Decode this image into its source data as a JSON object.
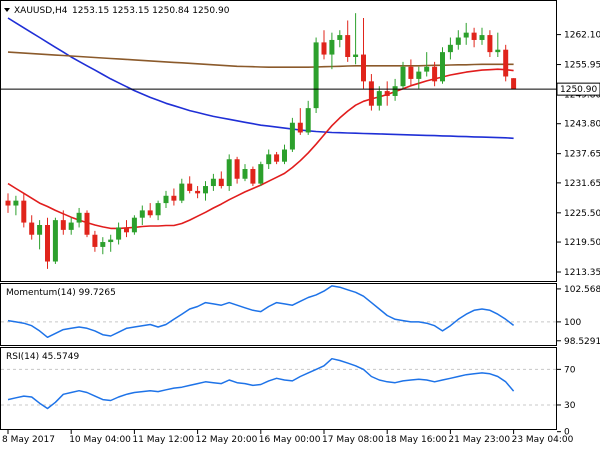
{
  "header": {
    "symbol_text": "XAUUSD,H4",
    "ohlc_text": "1253.15 1253.15 1250.84 1250.90"
  },
  "current_price_label": "1250.90",
  "colors": {
    "bull": "#2ca02c",
    "bear": "#e0241b",
    "ma_fast": "#e11d1d",
    "ma_mid": "#8b5a2b",
    "ma_slow": "#1f2fd6",
    "momentum": "#1e73e8",
    "rsi": "#1e73e8",
    "grid": "#c8c8c8",
    "border": "#000000"
  },
  "chart_data": [
    {
      "type": "candlestick",
      "name": "XAUUSD,H4",
      "ylim": [
        1211.5,
        1269.0
      ],
      "y_ticks": [
        "1262.10",
        "1255.95",
        "1249.80",
        "1243.80",
        "1237.65",
        "1231.65",
        "1225.50",
        "1219.50",
        "1213.35"
      ],
      "y_tick_values": [
        1262.1,
        1255.95,
        1249.8,
        1243.8,
        1237.65,
        1231.65,
        1225.5,
        1219.5,
        1213.35
      ],
      "current_price": 1250.9,
      "x_labels": [
        "8 May 2017",
        "10 May 04:00",
        "11 May 12:00",
        "12 May 20:00",
        "16 May 00:00",
        "17 May 08:00",
        "18 May 16:00",
        "21 May 23:00",
        "23 May 04:00"
      ],
      "x_label_index": [
        0,
        8,
        16,
        24,
        32,
        40,
        48,
        56,
        64
      ],
      "candles": [
        [
          1228.0,
          1229.5,
          1225.5,
          1227.0
        ],
        [
          1227.0,
          1229.0,
          1225.0,
          1228.0
        ],
        [
          1228.0,
          1229.5,
          1222.5,
          1223.5
        ],
        [
          1223.5,
          1225.0,
          1220.0,
          1221.0
        ],
        [
          1221.0,
          1224.0,
          1218.0,
          1223.0
        ],
        [
          1223.0,
          1224.5,
          1214.0,
          1215.5
        ],
        [
          1215.5,
          1224.5,
          1215.0,
          1224.0
        ],
        [
          1224.0,
          1226.0,
          1221.0,
          1222.0
        ],
        [
          1222.0,
          1224.5,
          1221.0,
          1223.5
        ],
        [
          1223.5,
          1226.5,
          1222.5,
          1225.5
        ],
        [
          1225.5,
          1226.0,
          1220.5,
          1221.0
        ],
        [
          1221.0,
          1221.8,
          1217.5,
          1218.5
        ],
        [
          1218.5,
          1220.5,
          1217.0,
          1219.5
        ],
        [
          1219.5,
          1221.0,
          1217.5,
          1220.0
        ],
        [
          1220.0,
          1223.5,
          1219.0,
          1222.5
        ],
        [
          1222.5,
          1224.0,
          1220.5,
          1221.5
        ],
        [
          1221.5,
          1225.0,
          1221.0,
          1224.5
        ],
        [
          1224.5,
          1227.0,
          1223.0,
          1226.0
        ],
        [
          1226.0,
          1227.5,
          1224.5,
          1225.0
        ],
        [
          1225.0,
          1228.0,
          1224.0,
          1227.5
        ],
        [
          1227.5,
          1230.0,
          1226.5,
          1229.0
        ],
        [
          1229.0,
          1230.5,
          1227.0,
          1228.0
        ],
        [
          1228.0,
          1232.5,
          1227.5,
          1231.5
        ],
        [
          1231.5,
          1233.0,
          1229.5,
          1230.0
        ],
        [
          1230.0,
          1231.0,
          1228.5,
          1229.5
        ],
        [
          1229.5,
          1232.0,
          1228.0,
          1231.0
        ],
        [
          1231.0,
          1233.5,
          1230.0,
          1232.5
        ],
        [
          1232.5,
          1234.0,
          1230.5,
          1231.0
        ],
        [
          1231.0,
          1237.5,
          1230.0,
          1236.5
        ],
        [
          1236.5,
          1237.0,
          1231.5,
          1232.5
        ],
        [
          1232.5,
          1235.5,
          1232.0,
          1234.5
        ],
        [
          1234.5,
          1235.0,
          1231.0,
          1231.5
        ],
        [
          1231.5,
          1236.0,
          1231.0,
          1235.5
        ],
        [
          1235.5,
          1238.5,
          1234.5,
          1237.5
        ],
        [
          1237.5,
          1238.0,
          1235.5,
          1236.0
        ],
        [
          1236.0,
          1239.5,
          1235.5,
          1238.5
        ],
        [
          1238.5,
          1245.0,
          1238.0,
          1244.0
        ],
        [
          1244.0,
          1247.0,
          1241.5,
          1242.0
        ],
        [
          1242.0,
          1248.5,
          1241.5,
          1247.0
        ],
        [
          1247.0,
          1261.5,
          1246.0,
          1260.5
        ],
        [
          1260.5,
          1263.0,
          1257.0,
          1258.0
        ],
        [
          1258.0,
          1262.5,
          1255.0,
          1261.0
        ],
        [
          1261.0,
          1263.0,
          1259.5,
          1262.0
        ],
        [
          1262.0,
          1265.0,
          1256.5,
          1257.5
        ],
        [
          1257.5,
          1266.5,
          1256.0,
          1258.0
        ],
        [
          1258.0,
          1265.5,
          1251.0,
          1252.5
        ],
        [
          1252.5,
          1254.0,
          1246.5,
          1247.5
        ],
        [
          1247.5,
          1251.5,
          1246.5,
          1250.5
        ],
        [
          1250.5,
          1252.5,
          1247.5,
          1249.5
        ],
        [
          1249.5,
          1253.0,
          1248.5,
          1251.5
        ],
        [
          1251.5,
          1256.5,
          1251.0,
          1255.5
        ],
        [
          1255.5,
          1257.0,
          1251.5,
          1253.0
        ],
        [
          1253.0,
          1255.5,
          1251.0,
          1254.5
        ],
        [
          1254.5,
          1258.5,
          1253.5,
          1255.5
        ],
        [
          1255.5,
          1256.5,
          1251.5,
          1252.5
        ],
        [
          1252.5,
          1259.5,
          1252.0,
          1258.5
        ],
        [
          1258.5,
          1261.5,
          1257.0,
          1260.0
        ],
        [
          1260.0,
          1263.0,
          1259.0,
          1261.5
        ],
        [
          1261.5,
          1264.5,
          1260.0,
          1262.5
        ],
        [
          1262.5,
          1263.5,
          1259.5,
          1261.0
        ],
        [
          1261.0,
          1263.5,
          1260.0,
          1262.0
        ],
        [
          1262.0,
          1263.0,
          1257.5,
          1258.5
        ],
        [
          1258.5,
          1262.5,
          1257.5,
          1259.0
        ],
        [
          1259.0,
          1260.0,
          1252.5,
          1253.5
        ],
        [
          1253.15,
          1253.15,
          1250.84,
          1250.9
        ]
      ],
      "ma_fast": [
        1231.5,
        1230.5,
        1229.5,
        1228.5,
        1227.5,
        1226.8,
        1226.0,
        1225.3,
        1224.6,
        1224.0,
        1223.5,
        1223.0,
        1222.6,
        1222.3,
        1222.3,
        1222.4,
        1222.5,
        1222.7,
        1222.8,
        1222.8,
        1222.9,
        1222.9,
        1223.3,
        1224.0,
        1224.8,
        1225.6,
        1226.5,
        1227.3,
        1228.2,
        1229.0,
        1229.8,
        1230.5,
        1231.2,
        1232.0,
        1232.8,
        1233.6,
        1234.8,
        1236.2,
        1237.8,
        1239.6,
        1241.5,
        1243.4,
        1245.0,
        1246.4,
        1247.6,
        1248.4,
        1248.9,
        1249.3,
        1249.8,
        1250.4,
        1251.0,
        1251.6,
        1252.1,
        1252.6,
        1253.0,
        1253.4,
        1253.8,
        1254.1,
        1254.4,
        1254.6,
        1254.8,
        1254.9,
        1255.0,
        1254.9,
        1254.7
      ],
      "ma_mid": [
        1258.5,
        1258.4,
        1258.3,
        1258.2,
        1258.1,
        1258.0,
        1257.9,
        1257.8,
        1257.7,
        1257.6,
        1257.5,
        1257.4,
        1257.3,
        1257.2,
        1257.1,
        1257.0,
        1256.9,
        1256.8,
        1256.7,
        1256.6,
        1256.5,
        1256.4,
        1256.3,
        1256.2,
        1256.1,
        1256.0,
        1255.9,
        1255.8,
        1255.7,
        1255.6,
        1255.55,
        1255.5,
        1255.45,
        1255.4,
        1255.4,
        1255.4,
        1255.4,
        1255.4,
        1255.4,
        1255.45,
        1255.5,
        1255.55,
        1255.6,
        1255.65,
        1255.7,
        1255.7,
        1255.7,
        1255.7,
        1255.7,
        1255.7,
        1255.7,
        1255.7,
        1255.7,
        1255.75,
        1255.8,
        1255.8,
        1255.85,
        1255.9,
        1255.9,
        1255.95,
        1256.0,
        1256.0,
        1256.0,
        1256.0,
        1256.0
      ],
      "ma_slow": [
        1265.5,
        1264.5,
        1263.5,
        1262.5,
        1261.5,
        1260.5,
        1259.5,
        1258.5,
        1257.5,
        1256.6,
        1255.7,
        1254.8,
        1253.9,
        1253.0,
        1252.2,
        1251.4,
        1250.6,
        1249.9,
        1249.2,
        1248.6,
        1248.0,
        1247.5,
        1247.0,
        1246.5,
        1246.1,
        1245.7,
        1245.3,
        1245.0,
        1244.7,
        1244.4,
        1244.1,
        1243.8,
        1243.5,
        1243.3,
        1243.1,
        1242.9,
        1242.7,
        1242.5,
        1242.35,
        1242.2,
        1242.1,
        1242.0,
        1241.95,
        1241.9,
        1241.85,
        1241.8,
        1241.75,
        1241.7,
        1241.65,
        1241.6,
        1241.55,
        1241.5,
        1241.45,
        1241.4,
        1241.35,
        1241.3,
        1241.25,
        1241.2,
        1241.15,
        1241.1,
        1241.05,
        1241.0,
        1240.95,
        1240.9,
        1240.8
      ]
    },
    {
      "type": "line",
      "name": "Momentum(14)",
      "title": "Momentum(14) 99.7265",
      "ylim": [
        98.2,
        102.95
      ],
      "y_ticks": [
        "102.5682",
        "100",
        "98.5291"
      ],
      "y_tick_values": [
        102.5682,
        100.0,
        98.5291
      ],
      "ref_level": 100.0,
      "values": [
        100.1,
        100.0,
        99.9,
        99.7,
        99.3,
        98.8,
        99.1,
        99.4,
        99.5,
        99.6,
        99.5,
        99.3,
        99.0,
        98.9,
        99.2,
        99.5,
        99.6,
        99.7,
        99.8,
        99.6,
        99.8,
        100.2,
        100.6,
        101.0,
        101.2,
        101.5,
        101.4,
        101.3,
        101.5,
        101.3,
        101.1,
        100.9,
        100.8,
        101.2,
        101.5,
        101.4,
        101.3,
        101.6,
        101.9,
        102.1,
        102.4,
        102.8,
        102.7,
        102.5,
        102.3,
        102.0,
        101.5,
        101.0,
        100.5,
        100.2,
        100.1,
        100.0,
        100.0,
        99.9,
        99.7,
        99.3,
        99.7,
        100.2,
        100.6,
        100.9,
        101.0,
        100.9,
        100.6,
        100.2,
        99.73
      ]
    },
    {
      "type": "line",
      "name": "RSI(14)",
      "title": "RSI(14) 45.5749",
      "ylim": [
        3.0,
        94.0
      ],
      "y_ticks": [
        "70",
        "30",
        "0"
      ],
      "y_tick_values": [
        70,
        30,
        0
      ],
      "levels": [
        70,
        30
      ],
      "values": [
        36,
        38,
        40,
        39,
        32,
        26,
        33,
        42,
        44,
        46,
        44,
        40,
        36,
        35,
        39,
        42,
        44,
        45,
        46,
        45,
        47,
        49,
        50,
        52,
        54,
        56,
        55,
        54,
        58,
        55,
        54,
        52,
        53,
        57,
        60,
        58,
        57,
        62,
        66,
        70,
        74,
        82,
        80,
        77,
        74,
        70,
        62,
        58,
        56,
        55,
        57,
        58,
        59,
        58,
        56,
        58,
        60,
        62,
        64,
        65,
        66,
        65,
        62,
        56,
        45.57
      ]
    }
  ]
}
